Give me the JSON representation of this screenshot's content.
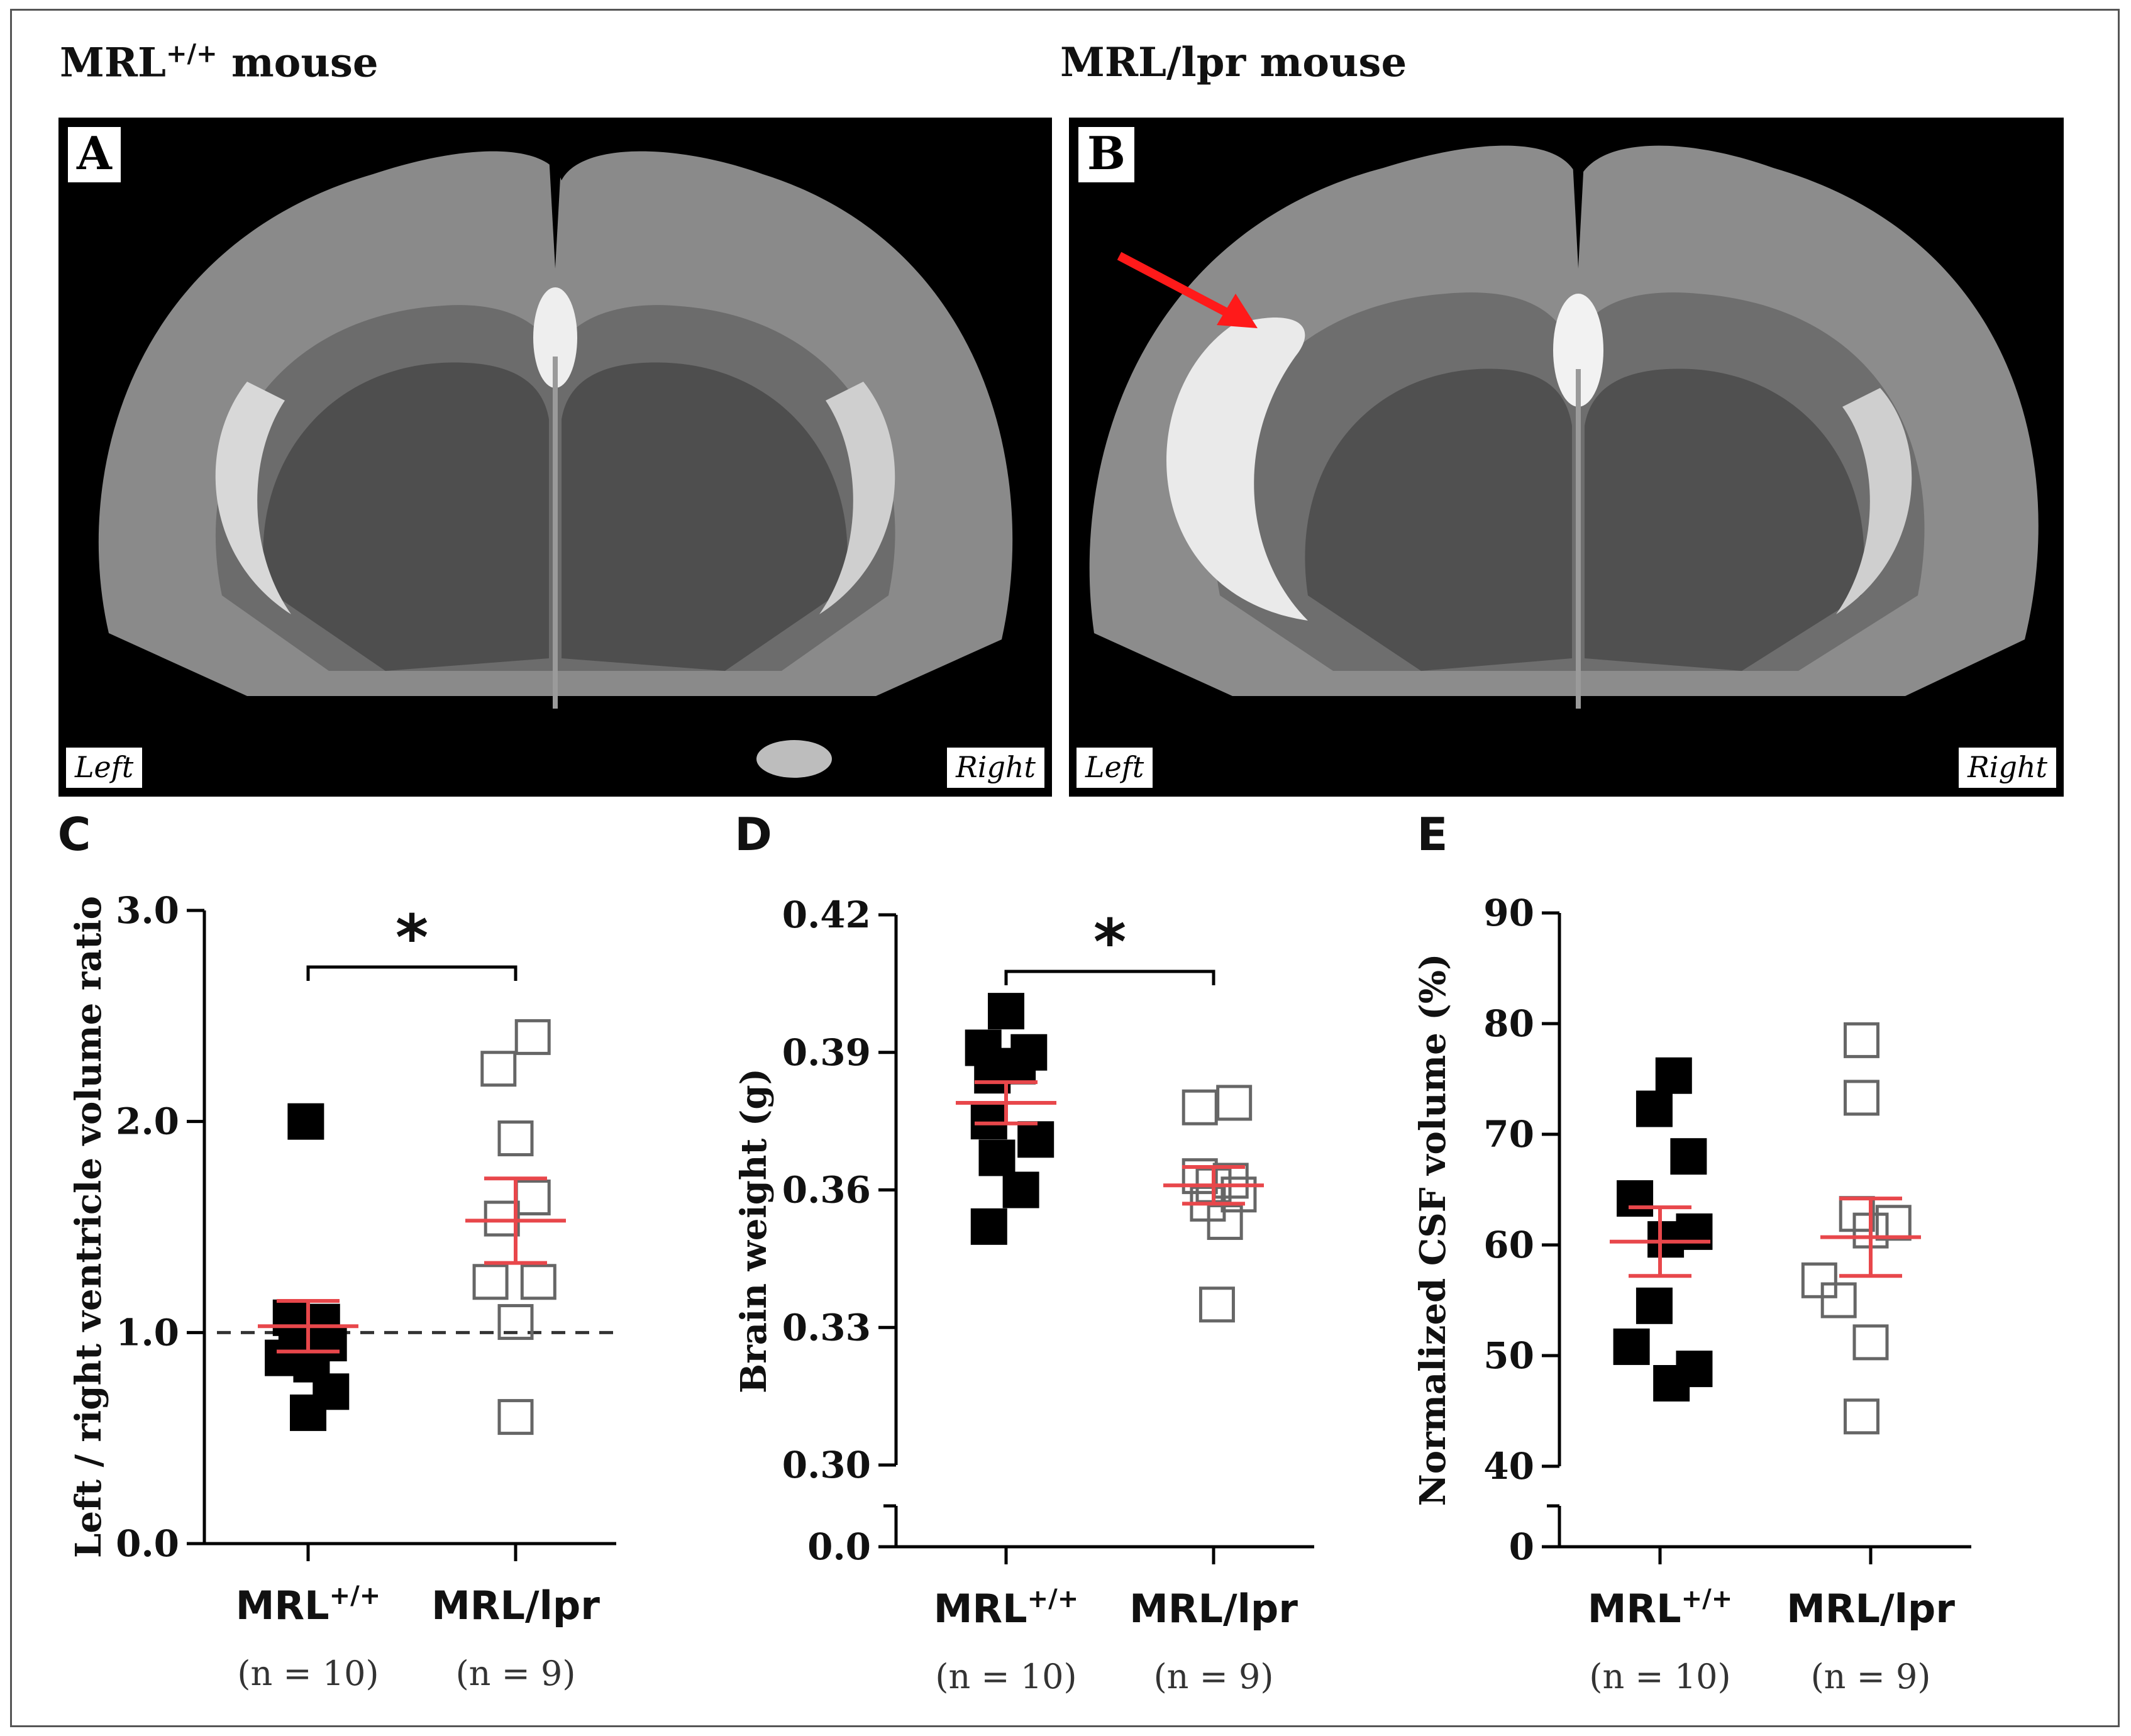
{
  "captions": {
    "left": "MRL",
    "left_sup": "+/+",
    "left_suffix": " mouse",
    "right": "MRL/lpr mouse"
  },
  "images": [
    {
      "letter": "A",
      "left_label": "Left",
      "right_label": "Right",
      "arrow": false
    },
    {
      "letter": "B",
      "left_label": "Left",
      "right_label": "Right",
      "arrow": true
    }
  ],
  "colors": {
    "mean_sem": "#e8474b",
    "filled": "#000000",
    "open": "#666666",
    "arrow": "#ff1a1a"
  },
  "chart_data": [
    {
      "panel": "C",
      "type": "scatter",
      "ylabel": "Left / right ventricle volume ratio",
      "ylim": [
        0,
        3.0
      ],
      "yticks": [
        "0.0",
        "1.0",
        "2.0",
        "3.0"
      ],
      "ytick_values": [
        0,
        1,
        2,
        3
      ],
      "axis_break": false,
      "reference_line": 1.0,
      "significance": "*",
      "groups": [
        {
          "name": "MRL",
          "sup": "+/+",
          "n_label": "(n = 10)",
          "marker": "filled",
          "points": [
            {
              "dx": -0.15,
              "y": 1.07
            },
            {
              "dx": 0.12,
              "y": 1.05
            },
            {
              "dx": 0.0,
              "y": 1.0
            },
            {
              "dx": -0.1,
              "y": 0.97
            },
            {
              "dx": 0.18,
              "y": 0.95
            },
            {
              "dx": -0.22,
              "y": 0.88
            },
            {
              "dx": 0.03,
              "y": 0.85
            },
            {
              "dx": 0.2,
              "y": 0.72
            },
            {
              "dx": 0.0,
              "y": 0.62
            },
            {
              "dx": -0.02,
              "y": 2.0
            }
          ],
          "mean": 1.03,
          "sem": 0.12
        },
        {
          "name": "MRL/lpr",
          "sup": "",
          "n_label": "(n = 9)",
          "marker": "open",
          "points": [
            {
              "dx": 0.15,
              "y": 2.4
            },
            {
              "dx": -0.15,
              "y": 2.25
            },
            {
              "dx": 0.0,
              "y": 1.92
            },
            {
              "dx": 0.15,
              "y": 1.64
            },
            {
              "dx": -0.12,
              "y": 1.54
            },
            {
              "dx": -0.22,
              "y": 1.24
            },
            {
              "dx": 0.2,
              "y": 1.24
            },
            {
              "dx": 0.0,
              "y": 1.05
            },
            {
              "dx": 0.0,
              "y": 0.6
            }
          ],
          "mean": 1.53,
          "sem": 0.2
        }
      ]
    },
    {
      "panel": "D",
      "type": "scatter",
      "ylabel": "Brain weight (g)",
      "ylim": [
        0.3,
        0.42
      ],
      "yticks": [
        "0.30",
        "0.33",
        "0.36",
        "0.39",
        "0.42"
      ],
      "ytick_values": [
        0.3,
        0.33,
        0.36,
        0.39,
        0.42
      ],
      "axis_break": true,
      "break_zero_label": "0.0",
      "reference_line": null,
      "significance": "*",
      "groups": [
        {
          "name": "MRL",
          "sup": "+/+",
          "n_label": "(n = 10)",
          "marker": "filled",
          "points": [
            {
              "dx": 0.0,
              "y": 0.399
            },
            {
              "dx": -0.2,
              "y": 0.391
            },
            {
              "dx": 0.2,
              "y": 0.39
            },
            {
              "dx": 0.1,
              "y": 0.387
            },
            {
              "dx": -0.12,
              "y": 0.385
            },
            {
              "dx": -0.15,
              "y": 0.375
            },
            {
              "dx": 0.26,
              "y": 0.371
            },
            {
              "dx": -0.08,
              "y": 0.367
            },
            {
              "dx": 0.13,
              "y": 0.36
            },
            {
              "dx": -0.15,
              "y": 0.352
            }
          ],
          "mean": 0.379,
          "sem": 0.0045
        },
        {
          "name": "MRL/lpr",
          "sup": "",
          "n_label": "(n = 9)",
          "marker": "open",
          "points": [
            {
              "dx": -0.12,
              "y": 0.378
            },
            {
              "dx": 0.18,
              "y": 0.379
            },
            {
              "dx": -0.12,
              "y": 0.363
            },
            {
              "dx": 0.15,
              "y": 0.362
            },
            {
              "dx": 0.0,
              "y": 0.361
            },
            {
              "dx": 0.22,
              "y": 0.359
            },
            {
              "dx": -0.05,
              "y": 0.357
            },
            {
              "dx": 0.1,
              "y": 0.353
            },
            {
              "dx": 0.03,
              "y": 0.335
            }
          ],
          "mean": 0.361,
          "sem": 0.004
        }
      ]
    },
    {
      "panel": "E",
      "type": "scatter",
      "ylabel": "Normalized CSF volume (%)",
      "ylim": [
        40,
        90
      ],
      "yticks": [
        "40",
        "50",
        "60",
        "70",
        "80",
        "90"
      ],
      "ytick_values": [
        40,
        50,
        60,
        70,
        80,
        90
      ],
      "axis_break": true,
      "break_zero_label": "0",
      "reference_line": null,
      "significance": "",
      "groups": [
        {
          "name": "MRL",
          "sup": "+/+",
          "n_label": "(n = 10)",
          "marker": "filled",
          "points": [
            {
              "dx": 0.12,
              "y": 75.3
            },
            {
              "dx": -0.05,
              "y": 72.3
            },
            {
              "dx": 0.25,
              "y": 68.0
            },
            {
              "dx": -0.22,
              "y": 64.2
            },
            {
              "dx": 0.3,
              "y": 61.2
            },
            {
              "dx": 0.05,
              "y": 60.5
            },
            {
              "dx": -0.05,
              "y": 54.5
            },
            {
              "dx": -0.25,
              "y": 50.8
            },
            {
              "dx": 0.3,
              "y": 48.8
            },
            {
              "dx": 0.1,
              "y": 47.5
            }
          ],
          "mean": 60.3,
          "sem": 3.1
        },
        {
          "name": "MRL/lpr",
          "sup": "",
          "n_label": "(n = 9)",
          "marker": "open",
          "points": [
            {
              "dx": -0.08,
              "y": 78.5
            },
            {
              "dx": -0.08,
              "y": 73.3
            },
            {
              "dx": -0.12,
              "y": 62.8
            },
            {
              "dx": 0.2,
              "y": 62.0
            },
            {
              "dx": 0.0,
              "y": 61.3
            },
            {
              "dx": -0.45,
              "y": 56.8
            },
            {
              "dx": -0.28,
              "y": 55.0
            },
            {
              "dx": 0.0,
              "y": 51.2
            },
            {
              "dx": -0.08,
              "y": 44.5
            }
          ],
          "mean": 60.7,
          "sem": 3.5
        }
      ]
    }
  ]
}
